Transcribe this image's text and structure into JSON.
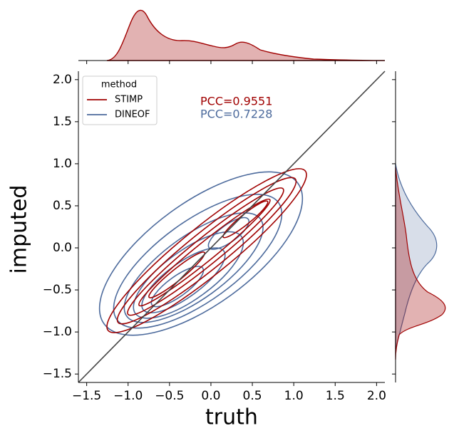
{
  "chart_data": {
    "type": "kde-joint",
    "xlabel": "truth",
    "ylabel": "imputed",
    "xlim": [
      -1.6,
      2.1
    ],
    "ylim": [
      -1.6,
      2.1
    ],
    "xticks": [
      {
        "value": -1.5,
        "label": "−1.5"
      },
      {
        "value": -1.0,
        "label": "−1.0"
      },
      {
        "value": -0.5,
        "label": "−0.5"
      },
      {
        "value": 0,
        "label": "0.0"
      },
      0.5,
      {
        "value": 1.0,
        "label": "1.0"
      },
      1.5,
      {
        "value": 2.0,
        "label": "2.0"
      }
    ],
    "yticks": [
      {
        "value": -1.5,
        "label": "−1.5"
      },
      {
        "value": -1.0,
        "label": "−1.0"
      },
      {
        "value": -0.5,
        "label": "−0.5"
      },
      {
        "value": 0,
        "label": "0.0"
      },
      0.5,
      {
        "value": 1.0,
        "label": "1.0"
      },
      1.5,
      {
        "value": 2.0,
        "label": "2.0"
      }
    ],
    "legend_title": "method",
    "legend": "upper left",
    "series": [
      {
        "name": "STIMP",
        "color": "#a00000"
      },
      {
        "name": "DINEOF",
        "color": "#4c6a9c"
      }
    ],
    "annotations": [
      {
        "text": "PCC=0.9551",
        "color": "#a00000"
      },
      {
        "text": "PCC=0.7228",
        "color": "#4c6a9c"
      }
    ]
  }
}
